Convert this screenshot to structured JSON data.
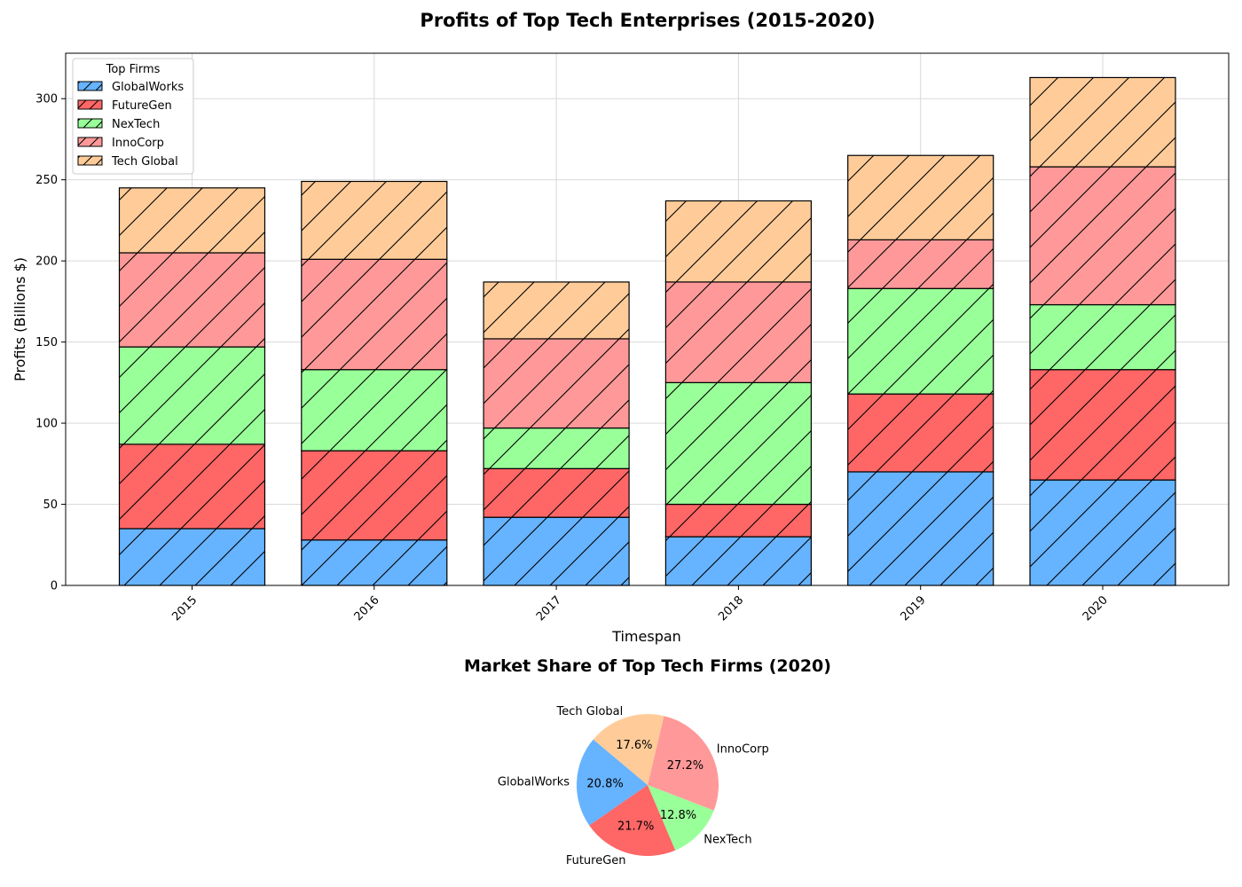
{
  "chart_data": [
    {
      "type": "bar",
      "stacked": true,
      "title": "Profits of Top Tech Enterprises (2015-2020)",
      "xlabel": "Timespan",
      "ylabel": "Profits (Billions $)",
      "categories": [
        "2015",
        "2016",
        "2017",
        "2018",
        "2019",
        "2020"
      ],
      "ylim": [
        0,
        328
      ],
      "yticks": [
        0,
        50,
        100,
        150,
        200,
        250,
        300
      ],
      "grid": true,
      "hatch": "diagonal",
      "legend": {
        "title": "Top Firms",
        "placement": "top-left"
      },
      "series": [
        {
          "name": "GlobalWorks",
          "color": "#66b3ff",
          "values": [
            35,
            28,
            42,
            30,
            70,
            65
          ]
        },
        {
          "name": "FutureGen",
          "color": "#ff6666",
          "values": [
            52,
            55,
            30,
            20,
            48,
            68
          ]
        },
        {
          "name": "NexTech",
          "color": "#99ff99",
          "values": [
            60,
            50,
            25,
            75,
            65,
            40
          ]
        },
        {
          "name": "InnoCorp",
          "color": "#ff9999",
          "values": [
            58,
            68,
            55,
            62,
            30,
            85
          ]
        },
        {
          "name": "Tech Global",
          "color": "#ffcc99",
          "values": [
            40,
            48,
            35,
            50,
            52,
            55
          ]
        }
      ]
    },
    {
      "type": "pie",
      "title": "Market Share of Top Tech Firms (2020)",
      "start_angle_deg": 140,
      "slices": [
        {
          "label": "GlobalWorks",
          "value": 65,
          "pct": "20.8%",
          "color": "#66b3ff"
        },
        {
          "label": "FutureGen",
          "value": 68,
          "pct": "21.7%",
          "color": "#ff6666"
        },
        {
          "label": "NexTech",
          "value": 40,
          "pct": "12.8%",
          "color": "#99ff99"
        },
        {
          "label": "InnoCorp",
          "value": 85,
          "pct": "27.2%",
          "color": "#ff9999"
        },
        {
          "label": "Tech Global",
          "value": 55,
          "pct": "17.6%",
          "color": "#ffcc99"
        }
      ]
    }
  ]
}
